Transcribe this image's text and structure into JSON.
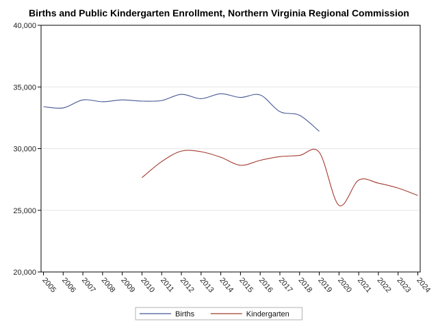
{
  "chart_data": {
    "type": "line",
    "title": "Births and Public Kindergarten Enrollment, Northern Virginia Regional Commission",
    "xlabel": "",
    "ylabel": "",
    "x": [
      "2005",
      "2006",
      "2007",
      "2008",
      "2009",
      "2010",
      "2011",
      "2012",
      "2013",
      "2014",
      "2015",
      "2016",
      "2017",
      "2018",
      "2019",
      "2020",
      "2021",
      "2022",
      "2023",
      "2024"
    ],
    "ylim": [
      20000,
      40000
    ],
    "yticks": [
      20000,
      25000,
      30000,
      35000,
      40000
    ],
    "ytick_labels": [
      "20,000",
      "25,000",
      "30,000",
      "35,000",
      "40,000"
    ],
    "grid": true,
    "legend_position": "bottom",
    "series": [
      {
        "name": "Births",
        "color": "#445694",
        "values": [
          33400,
          33300,
          33950,
          33800,
          33950,
          33850,
          33900,
          34400,
          34050,
          34450,
          34150,
          34350,
          33000,
          32700,
          31400,
          null,
          null,
          null,
          null,
          null
        ]
      },
      {
        "name": "Kindergarten",
        "color": "#a23a2e",
        "values": [
          null,
          null,
          null,
          null,
          null,
          27650,
          28950,
          29800,
          29750,
          29300,
          28650,
          29050,
          29350,
          29450,
          29700,
          25400,
          27450,
          27200,
          26800,
          26200
        ]
      }
    ]
  }
}
